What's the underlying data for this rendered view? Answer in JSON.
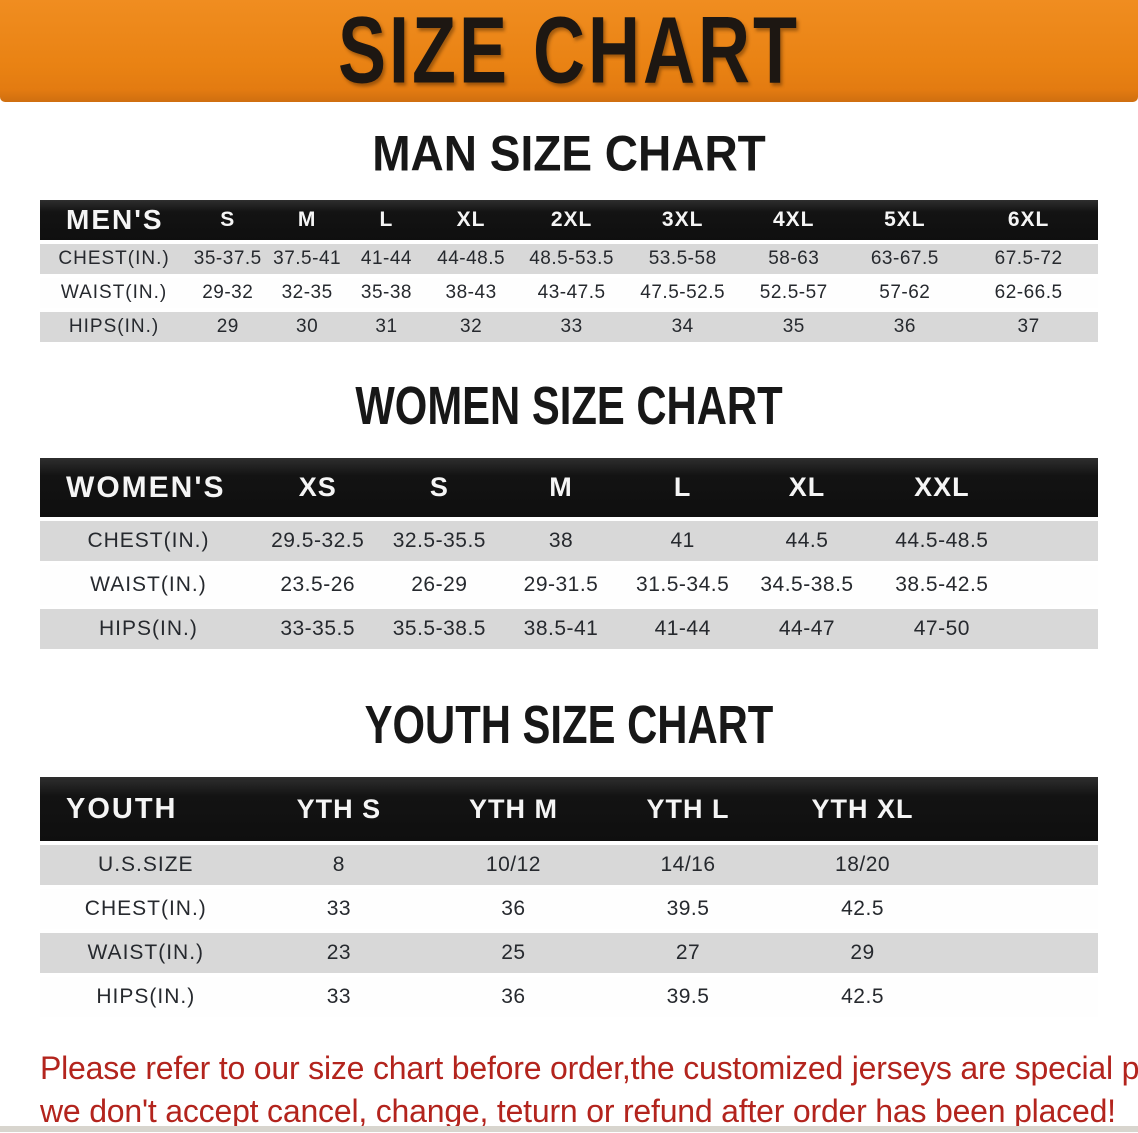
{
  "banner": {
    "title": "SIZE CHART",
    "bg_color": "#E98213",
    "text_color": "#1D1712"
  },
  "sections": [
    {
      "id": "men",
      "heading": "MAN SIZE CHART",
      "table": {
        "header": [
          "MEN'S",
          "S",
          "M",
          "L",
          "XL",
          "2XL",
          "3XL",
          "4XL",
          "5XL",
          "6XL"
        ],
        "rows": [
          {
            "label": "CHEST(IN.)",
            "values": [
              "35-37.5",
              "37.5-41",
              "41-44",
              "44-48.5",
              "48.5-53.5",
              "53.5-58",
              "58-63",
              "63-67.5",
              "67.5-72"
            ]
          },
          {
            "label": "WAIST(IN.)",
            "values": [
              "29-32",
              "32-35",
              "35-38",
              "38-43",
              "43-47.5",
              "47.5-52.5",
              "52.5-57",
              "57-62",
              "62-66.5"
            ]
          },
          {
            "label": "HIPS(IN.)",
            "values": [
              "29",
              "30",
              "31",
              "32",
              "33",
              "34",
              "35",
              "36",
              "37"
            ]
          }
        ]
      }
    },
    {
      "id": "women",
      "heading": "WOMEN SIZE CHART",
      "table": {
        "header": [
          "WOMEN'S",
          "XS",
          "S",
          "M",
          "L",
          "XL",
          "XXL"
        ],
        "rows": [
          {
            "label": "CHEST(IN.)",
            "values": [
              "29.5-32.5",
              "32.5-35.5",
              "38",
              "41",
              "44.5",
              "44.5-48.5"
            ]
          },
          {
            "label": "WAIST(IN.)",
            "values": [
              "23.5-26",
              "26-29",
              "29-31.5",
              "31.5-34.5",
              "34.5-38.5",
              "38.5-42.5"
            ]
          },
          {
            "label": "HIPS(IN.)",
            "values": [
              "33-35.5",
              "35.5-38.5",
              "38.5-41",
              "41-44",
              "44-47",
              "47-50"
            ]
          }
        ]
      }
    },
    {
      "id": "youth",
      "heading": "YOUTH SIZE CHART",
      "table": {
        "header": [
          "YOUTH",
          "YTH S",
          "YTH M",
          "YTH L",
          "YTH XL"
        ],
        "rows": [
          {
            "label": "U.S.SIZE",
            "values": [
              "8",
              "10/12",
              "14/16",
              "18/20"
            ]
          },
          {
            "label": "CHEST(IN.)",
            "values": [
              "33",
              "36",
              "39.5",
              "42.5"
            ]
          },
          {
            "label": "WAIST(IN.)",
            "values": [
              "23",
              "25",
              "27",
              "29"
            ]
          },
          {
            "label": "HIPS(IN.)",
            "values": [
              "33",
              "36",
              "39.5",
              "42.5"
            ]
          }
        ]
      }
    }
  ],
  "footer": {
    "lines": [
      "Please refer to our size chart before order,the customized jerseys are special products,",
      "we don't accept cancel, change, teturn or refund after order has been placed!"
    ],
    "text_color": "#B3241D"
  },
  "colors": {
    "row_stripe_gray": "#D8D8D8",
    "table_header_black": "#131313"
  }
}
